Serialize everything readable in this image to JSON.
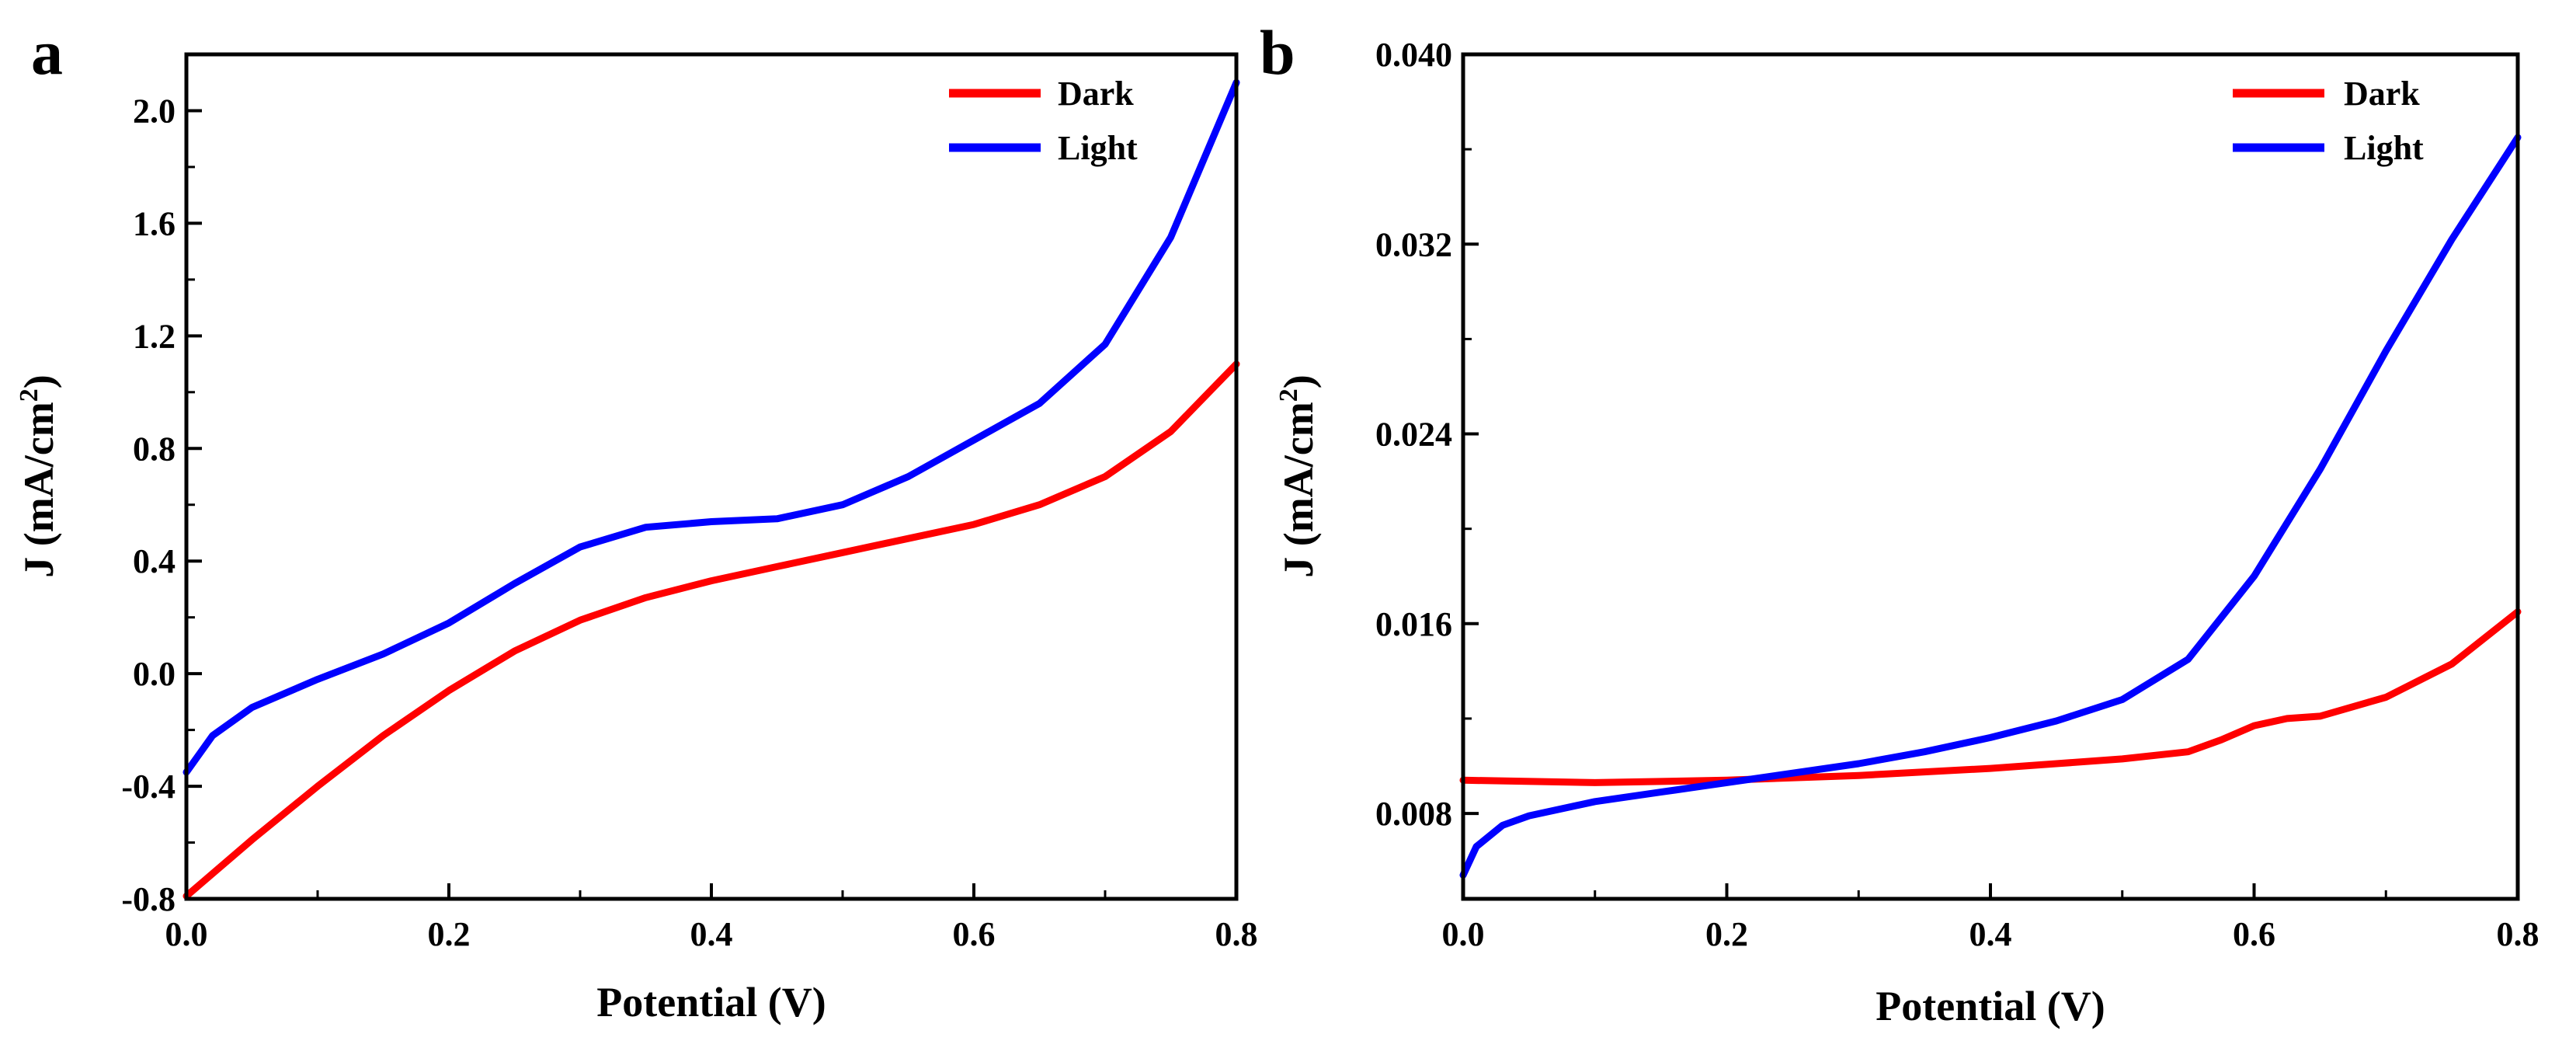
{
  "chart_data": [
    {
      "panel": "a",
      "type": "line",
      "title": "",
      "xlabel": "Potential (V)",
      "ylabel_prefix": "J (mA/cm",
      "ylabel_sup": "2",
      "ylabel_suffix": ")",
      "xlim": [
        0.0,
        0.8
      ],
      "ylim": [
        -0.8,
        2.2
      ],
      "xticks": [
        0.0,
        0.2,
        0.4,
        0.6,
        0.8
      ],
      "xtick_labels": [
        "0.0",
        "0.2",
        "0.4",
        "0.6",
        "0.8"
      ],
      "yticks": [
        -0.8,
        -0.4,
        0.0,
        0.4,
        0.8,
        1.2,
        1.6,
        2.0
      ],
      "ytick_labels": [
        "-0.8",
        "-0.4",
        "0.0",
        "0.4",
        "0.8",
        "1.2",
        "1.6",
        "2.0"
      ],
      "legend_position": "top-right",
      "series": [
        {
          "name": "Dark",
          "color": "#ff0000",
          "x": [
            0.0,
            0.05,
            0.1,
            0.15,
            0.2,
            0.25,
            0.3,
            0.35,
            0.4,
            0.45,
            0.5,
            0.55,
            0.6,
            0.65,
            0.7,
            0.75,
            0.8
          ],
          "y": [
            -0.79,
            -0.59,
            -0.4,
            -0.22,
            -0.06,
            0.08,
            0.19,
            0.27,
            0.33,
            0.38,
            0.43,
            0.48,
            0.53,
            0.6,
            0.7,
            0.86,
            1.1
          ]
        },
        {
          "name": "Light",
          "color": "#0000ff",
          "x": [
            0.0,
            0.02,
            0.05,
            0.1,
            0.15,
            0.2,
            0.25,
            0.3,
            0.35,
            0.4,
            0.45,
            0.5,
            0.55,
            0.6,
            0.65,
            0.7,
            0.75,
            0.8
          ],
          "y": [
            -0.35,
            -0.22,
            -0.12,
            -0.02,
            0.07,
            0.18,
            0.32,
            0.45,
            0.52,
            0.54,
            0.55,
            0.6,
            0.7,
            0.83,
            0.96,
            1.17,
            1.55,
            2.1
          ]
        }
      ]
    },
    {
      "panel": "b",
      "type": "line",
      "title": "",
      "xlabel": "Potential (V)",
      "ylabel_prefix": "J (mA/cm",
      "ylabel_sup": "2",
      "ylabel_suffix": ")",
      "xlim": [
        0.0,
        0.8
      ],
      "ylim": [
        0.0044,
        0.04
      ],
      "xticks": [
        0.0,
        0.2,
        0.4,
        0.6,
        0.8
      ],
      "xtick_labels": [
        "0.0",
        "0.2",
        "0.4",
        "0.6",
        "0.8"
      ],
      "yticks": [
        0.008,
        0.016,
        0.024,
        0.032,
        0.04
      ],
      "ytick_labels": [
        "0.008",
        "0.016",
        "0.024",
        "0.032",
        "0.040"
      ],
      "legend_position": "top-right",
      "series": [
        {
          "name": "Dark",
          "color": "#ff0000",
          "x": [
            0.0,
            0.1,
            0.2,
            0.3,
            0.4,
            0.45,
            0.5,
            0.55,
            0.575,
            0.6,
            0.625,
            0.65,
            0.7,
            0.75,
            0.8
          ],
          "y": [
            0.0094,
            0.0093,
            0.0094,
            0.0096,
            0.0099,
            0.0101,
            0.0103,
            0.0106,
            0.0111,
            0.0117,
            0.012,
            0.0121,
            0.0129,
            0.0143,
            0.0165
          ]
        },
        {
          "name": "Light",
          "color": "#0000ff",
          "x": [
            0.0,
            0.01,
            0.03,
            0.05,
            0.1,
            0.15,
            0.2,
            0.25,
            0.3,
            0.35,
            0.4,
            0.45,
            0.5,
            0.55,
            0.6,
            0.65,
            0.7,
            0.75,
            0.8
          ],
          "y": [
            0.0054,
            0.0066,
            0.0075,
            0.0079,
            0.0085,
            0.0089,
            0.0093,
            0.0097,
            0.0101,
            0.0106,
            0.0112,
            0.0119,
            0.0128,
            0.0145,
            0.018,
            0.0225,
            0.0275,
            0.0322,
            0.0365
          ]
        }
      ]
    }
  ]
}
